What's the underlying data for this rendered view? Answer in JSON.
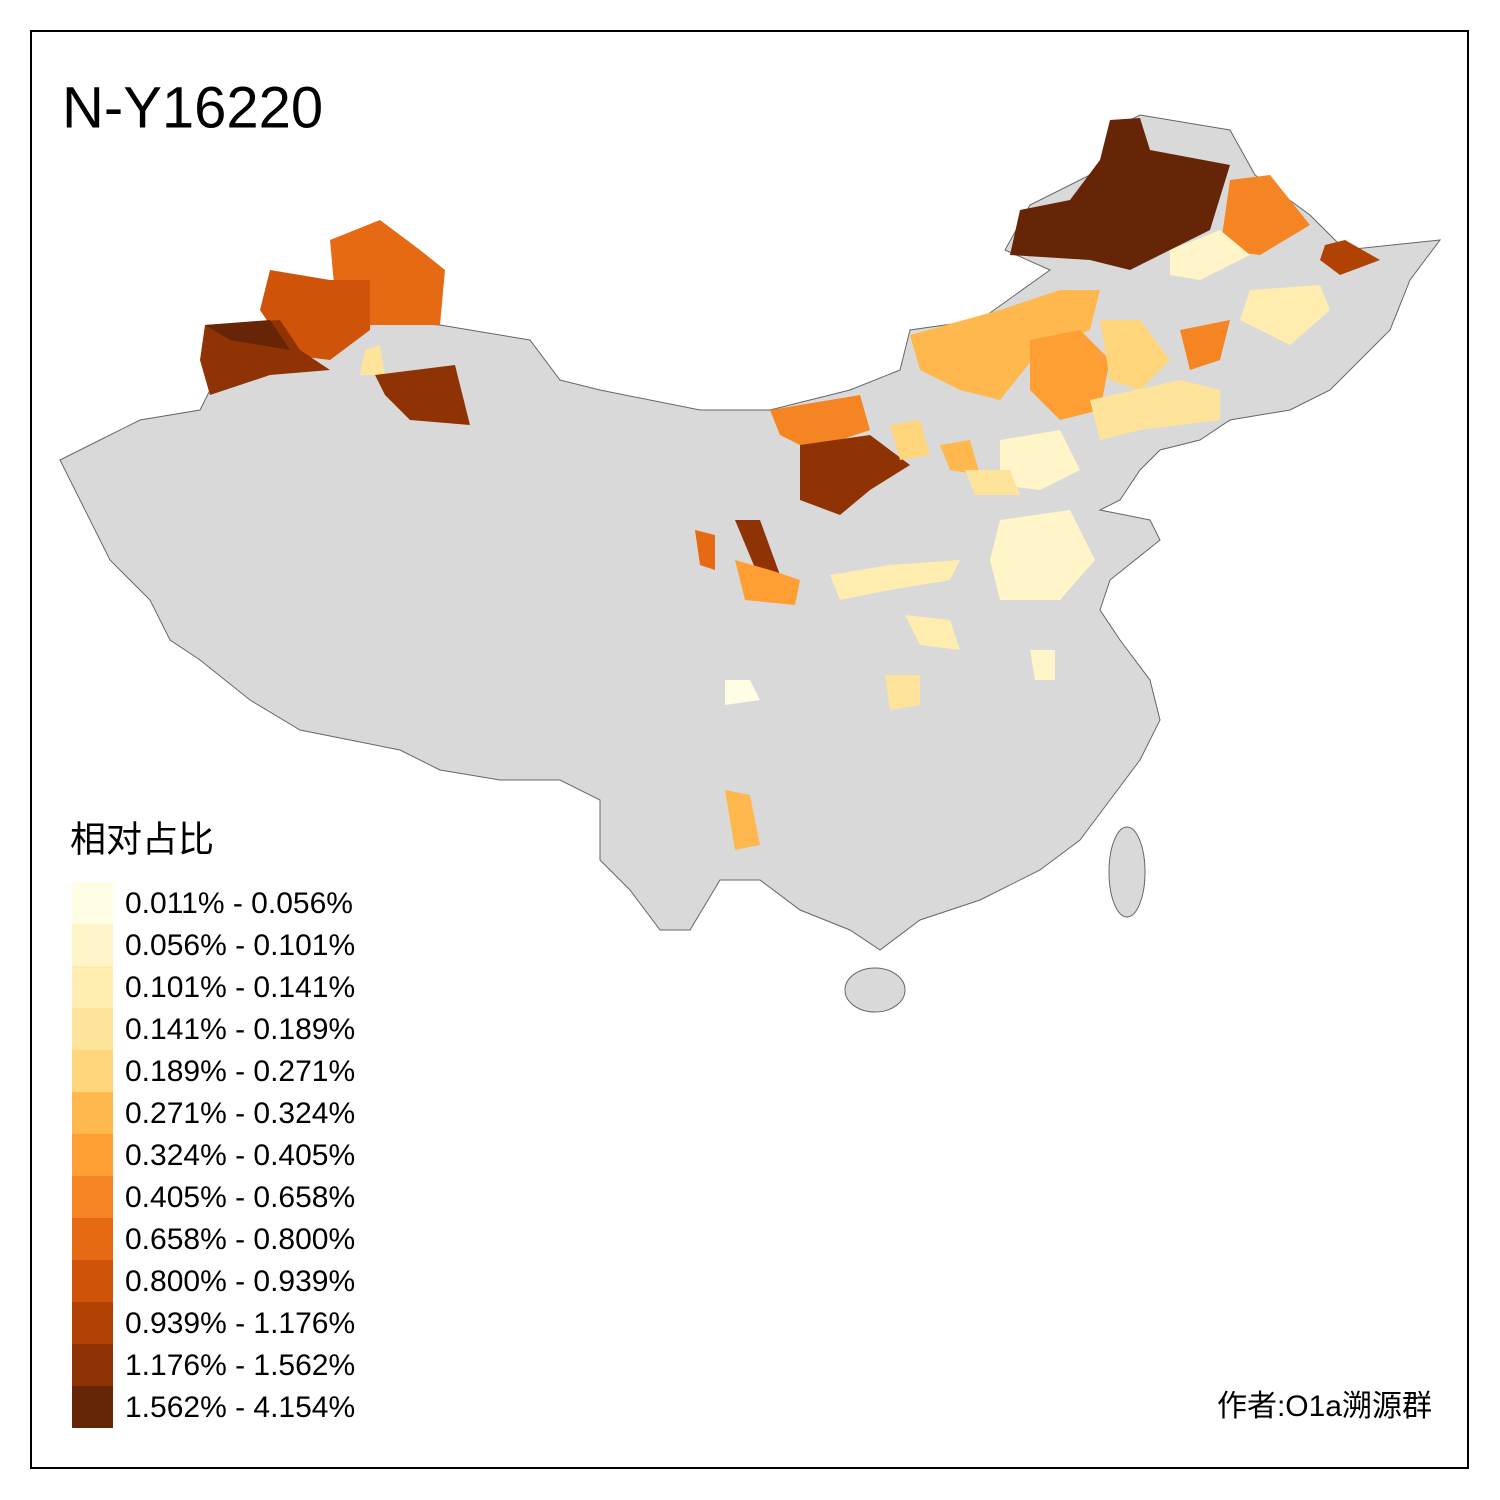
{
  "title": "N-Y16220",
  "legend": {
    "title": "相对占比",
    "items": [
      {
        "label": "0.011% - 0.056%",
        "color": "#fffde3"
      },
      {
        "label": "0.056% - 0.101%",
        "color": "#fff5c8"
      },
      {
        "label": "0.101% - 0.141%",
        "color": "#ffedb0"
      },
      {
        "label": "0.141% - 0.189%",
        "color": "#fee49a"
      },
      {
        "label": "0.189% - 0.271%",
        "color": "#fed57a"
      },
      {
        "label": "0.271% - 0.324%",
        "color": "#feb84d"
      },
      {
        "label": "0.324% - 0.405%",
        "color": "#fe9e33"
      },
      {
        "label": "0.405% - 0.658%",
        "color": "#f58523"
      },
      {
        "label": "0.658% - 0.800%",
        "color": "#e66a14"
      },
      {
        "label": "0.800% - 0.939%",
        "color": "#d0530a"
      },
      {
        "label": "0.939% - 1.176%",
        "color": "#b04204"
      },
      {
        "label": "1.176% - 1.562%",
        "color": "#8f3204"
      },
      {
        "label": "1.562% - 4.154%",
        "color": "#662506"
      }
    ]
  },
  "credit": "作者:O1a溯源群"
}
